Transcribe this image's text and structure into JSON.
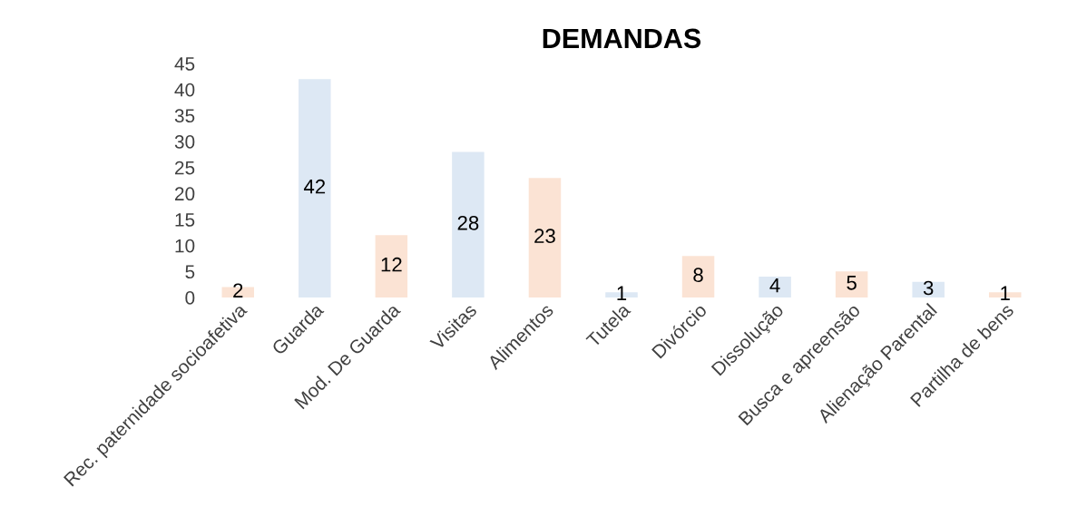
{
  "chart_data": {
    "type": "bar",
    "title": "DEMANDAS",
    "categories": [
      "Rec. paternidade socioafetiva",
      "Guarda",
      "Mod. De Guarda",
      "Visitas",
      "Alimentos",
      "Tutela",
      "Divórcio",
      "Dissolução",
      "Busca e apreensão",
      "Alienação Parental",
      "Partilha de bens"
    ],
    "values": [
      2,
      42,
      12,
      28,
      23,
      1,
      8,
      4,
      5,
      3,
      1
    ],
    "colors": [
      "#fbe3d4",
      "#dde8f4",
      "#fbe3d4",
      "#dde8f4",
      "#fbe3d4",
      "#dde8f4",
      "#fbe3d4",
      "#dde8f4",
      "#fbe3d4",
      "#dde8f4",
      "#fbe3d4"
    ],
    "ylim": [
      0,
      45
    ],
    "yticks": [
      0,
      5,
      10,
      15,
      20,
      25,
      30,
      35,
      40,
      45
    ],
    "grid": false,
    "data_labels": true
  }
}
